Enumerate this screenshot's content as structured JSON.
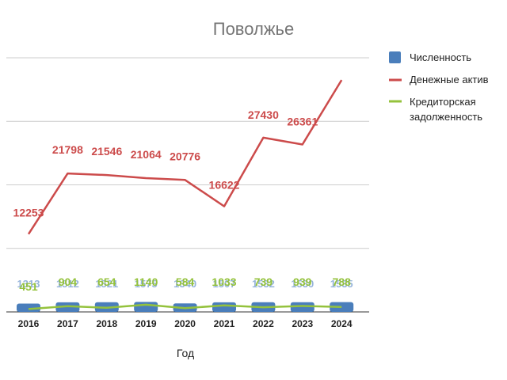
{
  "chart_data": {
    "type": "line",
    "title": "Поволжье",
    "xlabel": "Год",
    "ylabel": "",
    "categories": [
      "2016",
      "2017",
      "2018",
      "2019",
      "2020",
      "2021",
      "2022",
      "2023",
      "2024"
    ],
    "ylim": [
      0,
      40000
    ],
    "grid": true,
    "legend_position": "right",
    "series": [
      {
        "name": "Численность",
        "type": "bar",
        "color": "#4a7ebb",
        "values": [
          1313,
          1512,
          1521,
          1575,
          1340,
          1507,
          1532,
          1530,
          1535
        ]
      },
      {
        "name": "Денежные активы",
        "type": "line",
        "color": "#cc4b4b",
        "values": [
          12253,
          21798,
          21546,
          21064,
          20776,
          16622,
          27430,
          26361,
          36500
        ],
        "labels": [
          "12253",
          "21798",
          "21546",
          "21064",
          "20776",
          "16622",
          "27430",
          "26361",
          ""
        ]
      },
      {
        "name": "Кредиторская задолженность",
        "type": "line",
        "color": "#94c23c",
        "values": [
          451,
          904,
          654,
          1140,
          584,
          1033,
          739,
          939,
          788
        ],
        "labels": [
          "451",
          "904",
          "654",
          "1140",
          "584",
          "1033",
          "739",
          "939",
          "788"
        ]
      }
    ],
    "legend_labels": [
      "Численность",
      "Денежные актив",
      "Кредиторская",
      "задолженность"
    ]
  }
}
